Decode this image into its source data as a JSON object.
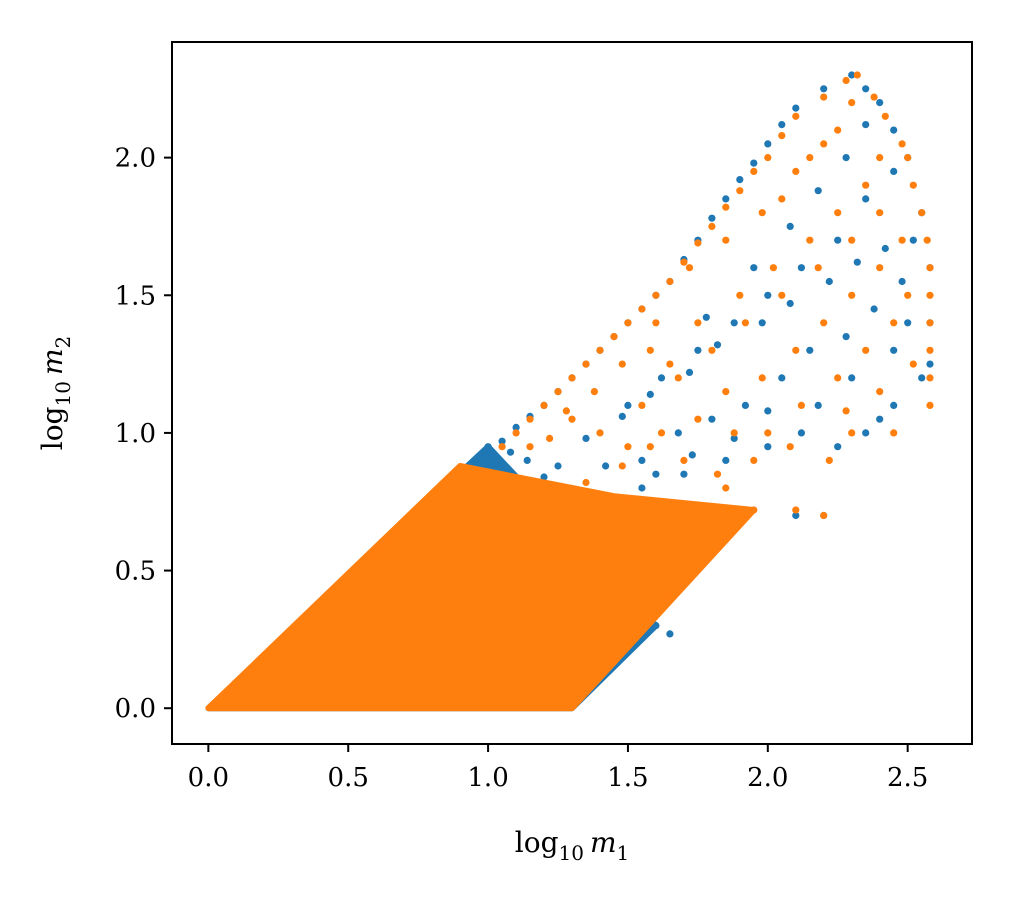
{
  "chart_data": {
    "type": "scatter",
    "title": "",
    "xlabel": {
      "base": "log",
      "sub": "10",
      "var": "m",
      "var_sub": "1"
    },
    "ylabel": {
      "base": "log",
      "sub": "10",
      "var": "m",
      "var_sub": "2"
    },
    "xlim": [
      -0.13,
      2.73
    ],
    "ylim": [
      -0.13,
      2.42
    ],
    "xticks": [
      0.0,
      0.5,
      1.0,
      1.5,
      2.0,
      2.5
    ],
    "yticks": [
      0.0,
      0.5,
      1.0,
      1.5,
      2.0
    ],
    "xtick_labels": [
      "0.0",
      "0.5",
      "1.0",
      "1.5",
      "2.0",
      "2.5"
    ],
    "ytick_labels": [
      "0.0",
      "0.5",
      "1.0",
      "1.5",
      "2.0"
    ],
    "grid": false,
    "legend": "none",
    "series": [
      {
        "color": "#1f77b4",
        "marker": "circle",
        "dense_region_polygon": [
          [
            0.0,
            0.0
          ],
          [
            1.3,
            0.0
          ],
          [
            1.6,
            0.3
          ],
          [
            1.0,
            0.95
          ],
          [
            0.0,
            0.0
          ]
        ],
        "points": [
          [
            1.0,
            0.95
          ],
          [
            1.05,
            0.97
          ],
          [
            1.1,
            1.02
          ],
          [
            1.15,
            1.06
          ],
          [
            1.2,
            1.1
          ],
          [
            1.25,
            1.15
          ],
          [
            1.3,
            1.2
          ],
          [
            1.35,
            1.25
          ],
          [
            1.4,
            1.3
          ],
          [
            1.45,
            1.35
          ],
          [
            1.5,
            1.4
          ],
          [
            1.55,
            1.45
          ],
          [
            1.6,
            1.5
          ],
          [
            1.65,
            1.55
          ],
          [
            1.7,
            1.63
          ],
          [
            1.75,
            1.7
          ],
          [
            1.8,
            1.78
          ],
          [
            1.85,
            1.85
          ],
          [
            1.9,
            1.92
          ],
          [
            1.95,
            1.98
          ],
          [
            2.0,
            2.05
          ],
          [
            2.05,
            2.12
          ],
          [
            2.1,
            2.18
          ],
          [
            2.2,
            2.25
          ],
          [
            2.3,
            2.3
          ],
          [
            2.35,
            2.25
          ],
          [
            2.4,
            2.2
          ],
          [
            2.45,
            2.1
          ],
          [
            2.5,
            2.0
          ],
          [
            2.55,
            1.8
          ],
          [
            2.58,
            1.6
          ],
          [
            2.58,
            1.4
          ],
          [
            2.58,
            1.25
          ],
          [
            2.55,
            1.2
          ],
          [
            2.45,
            1.1
          ],
          [
            2.4,
            1.05
          ],
          [
            2.35,
            1.0
          ],
          [
            2.25,
            0.95
          ],
          [
            2.2,
            0.7
          ],
          [
            2.1,
            0.7
          ],
          [
            1.75,
            0.55
          ],
          [
            1.65,
            0.27
          ],
          [
            1.6,
            0.3
          ],
          [
            1.2,
            0.6
          ],
          [
            1.3,
            0.77
          ],
          [
            1.42,
            0.88
          ],
          [
            1.55,
            0.9
          ],
          [
            1.68,
            1.0
          ],
          [
            1.8,
            1.05
          ],
          [
            1.92,
            1.1
          ],
          [
            2.05,
            1.2
          ],
          [
            2.15,
            1.3
          ],
          [
            2.28,
            1.35
          ],
          [
            2.38,
            1.45
          ],
          [
            2.48,
            1.55
          ],
          [
            2.52,
            1.7
          ],
          [
            1.5,
            1.1
          ],
          [
            1.62,
            1.2
          ],
          [
            1.75,
            1.3
          ],
          [
            1.88,
            1.4
          ],
          [
            2.0,
            1.5
          ],
          [
            2.12,
            1.6
          ],
          [
            2.25,
            1.7
          ],
          [
            2.35,
            1.85
          ],
          [
            2.45,
            1.95
          ],
          [
            1.45,
            0.75
          ],
          [
            1.55,
            0.8
          ],
          [
            1.7,
            0.85
          ],
          [
            1.85,
            0.9
          ],
          [
            2.0,
            0.95
          ],
          [
            2.12,
            1.0
          ],
          [
            1.78,
            1.42
          ],
          [
            1.95,
            1.6
          ],
          [
            2.08,
            1.75
          ],
          [
            2.18,
            1.88
          ],
          [
            2.28,
            2.0
          ],
          [
            2.35,
            2.12
          ],
          [
            1.25,
            0.88
          ],
          [
            1.35,
            0.98
          ],
          [
            1.48,
            1.06
          ],
          [
            1.58,
            1.14
          ],
          [
            1.72,
            1.22
          ],
          [
            1.82,
            1.32
          ],
          [
            1.98,
            1.4
          ],
          [
            2.08,
            1.47
          ],
          [
            2.22,
            1.55
          ],
          [
            2.32,
            1.62
          ],
          [
            2.42,
            1.67
          ],
          [
            2.5,
            1.4
          ],
          [
            2.45,
            1.3
          ],
          [
            2.3,
            1.2
          ],
          [
            2.18,
            1.1
          ],
          [
            2.0,
            1.08
          ],
          [
            1.88,
            0.98
          ],
          [
            1.73,
            0.92
          ],
          [
            1.6,
            0.85
          ],
          [
            1.2,
            0.84
          ],
          [
            1.14,
            0.9
          ],
          [
            1.08,
            0.93
          ]
        ]
      },
      {
        "color": "#ff7f0e",
        "marker": "circle",
        "dense_region_polygon": [
          [
            0.0,
            0.0
          ],
          [
            1.3,
            0.0
          ],
          [
            1.95,
            0.72
          ],
          [
            1.45,
            0.77
          ],
          [
            0.9,
            0.88
          ],
          [
            0.0,
            0.0
          ]
        ],
        "points": [
          [
            1.05,
            0.95
          ],
          [
            1.1,
            1.0
          ],
          [
            1.15,
            1.05
          ],
          [
            1.2,
            1.1
          ],
          [
            1.25,
            1.15
          ],
          [
            1.3,
            1.2
          ],
          [
            1.35,
            1.25
          ],
          [
            1.4,
            1.3
          ],
          [
            1.45,
            1.35
          ],
          [
            1.5,
            1.4
          ],
          [
            1.55,
            1.45
          ],
          [
            1.6,
            1.5
          ],
          [
            1.65,
            1.55
          ],
          [
            1.7,
            1.62
          ],
          [
            1.75,
            1.69
          ],
          [
            1.8,
            1.75
          ],
          [
            1.85,
            1.82
          ],
          [
            1.9,
            1.88
          ],
          [
            1.95,
            1.95
          ],
          [
            2.0,
            2.0
          ],
          [
            2.05,
            2.08
          ],
          [
            2.1,
            2.15
          ],
          [
            2.2,
            2.22
          ],
          [
            2.28,
            2.28
          ],
          [
            2.32,
            2.3
          ],
          [
            2.38,
            2.22
          ],
          [
            2.42,
            2.15
          ],
          [
            2.48,
            2.05
          ],
          [
            2.5,
            2.0
          ],
          [
            2.52,
            1.9
          ],
          [
            2.55,
            1.8
          ],
          [
            2.57,
            1.7
          ],
          [
            2.58,
            1.6
          ],
          [
            2.58,
            1.5
          ],
          [
            2.58,
            1.4
          ],
          [
            2.58,
            1.3
          ],
          [
            2.58,
            1.2
          ],
          [
            2.58,
            1.1
          ],
          [
            2.45,
            1.0
          ],
          [
            2.3,
            1.0
          ],
          [
            2.22,
            0.9
          ],
          [
            2.2,
            0.7
          ],
          [
            2.1,
            0.72
          ],
          [
            1.95,
            0.72
          ],
          [
            1.85,
            0.8
          ],
          [
            1.7,
            0.9
          ],
          [
            1.58,
            0.95
          ],
          [
            1.48,
            0.88
          ],
          [
            1.35,
            0.82
          ],
          [
            1.55,
            1.1
          ],
          [
            1.68,
            1.2
          ],
          [
            1.8,
            1.3
          ],
          [
            1.92,
            1.4
          ],
          [
            2.05,
            1.5
          ],
          [
            2.18,
            1.6
          ],
          [
            2.3,
            1.7
          ],
          [
            2.4,
            1.8
          ],
          [
            2.5,
            1.5
          ],
          [
            2.45,
            1.4
          ],
          [
            2.35,
            1.3
          ],
          [
            2.25,
            1.2
          ],
          [
            2.12,
            1.1
          ],
          [
            2.0,
            1.0
          ],
          [
            1.88,
            1.0
          ],
          [
            1.75,
            1.05
          ],
          [
            1.62,
            1.0
          ],
          [
            1.5,
            0.95
          ],
          [
            1.4,
            1.0
          ],
          [
            1.3,
            1.05
          ],
          [
            1.75,
            1.4
          ],
          [
            1.9,
            1.5
          ],
          [
            2.02,
            1.6
          ],
          [
            2.15,
            1.7
          ],
          [
            2.25,
            1.8
          ],
          [
            2.35,
            1.9
          ],
          [
            2.4,
            2.0
          ],
          [
            2.2,
            2.05
          ],
          [
            2.1,
            1.95
          ],
          [
            1.98,
            1.8
          ],
          [
            1.85,
            1.7
          ],
          [
            1.72,
            1.6
          ],
          [
            1.6,
            1.4
          ],
          [
            1.48,
            1.25
          ],
          [
            1.38,
            1.15
          ],
          [
            1.28,
            1.08
          ],
          [
            1.22,
            0.98
          ],
          [
            1.15,
            0.95
          ],
          [
            2.3,
            1.5
          ],
          [
            2.4,
            1.6
          ],
          [
            2.48,
            1.7
          ],
          [
            2.52,
            1.25
          ],
          [
            2.4,
            1.15
          ],
          [
            2.28,
            1.08
          ],
          [
            2.08,
            0.95
          ],
          [
            1.95,
            0.9
          ],
          [
            1.82,
            0.85
          ],
          [
            2.1,
            1.3
          ],
          [
            2.2,
            1.4
          ],
          [
            1.98,
            1.2
          ],
          [
            1.85,
            1.15
          ],
          [
            1.65,
            1.25
          ],
          [
            1.58,
            1.3
          ],
          [
            2.05,
            1.85
          ],
          [
            2.15,
            2.0
          ],
          [
            2.25,
            2.1
          ],
          [
            2.3,
            2.2
          ]
        ]
      }
    ]
  }
}
